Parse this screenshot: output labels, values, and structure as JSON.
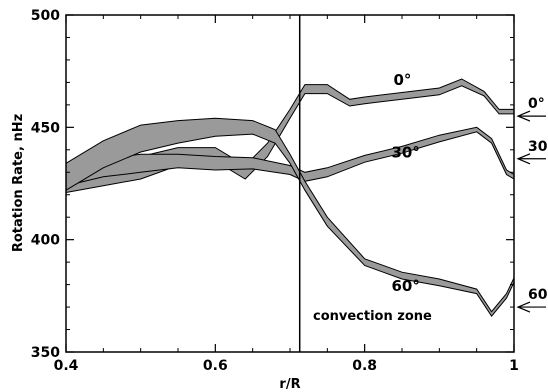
{
  "chart_data": {
    "type": "line",
    "title": "",
    "xlabel": "r/R",
    "ylabel": "Rotation Rate, nHz",
    "xlim": [
      0.4,
      1.0
    ],
    "ylim": [
      350,
      500
    ],
    "xticks": [
      0.4,
      0.6,
      0.8,
      1.0
    ],
    "xtick_labels": [
      "0.4",
      "0.6",
      "0.8",
      "1"
    ],
    "yticks": [
      350,
      400,
      450,
      500
    ],
    "ytick_labels": [
      "350",
      "400",
      "450",
      "500"
    ],
    "grid": false,
    "legend": "none",
    "band_color": "#9a9a9a",
    "series": [
      {
        "label": "0°",
        "x": [
          0.4,
          0.45,
          0.5,
          0.55,
          0.6,
          0.64,
          0.67,
          0.7,
          0.72,
          0.75,
          0.78,
          0.8,
          0.85,
          0.9,
          0.93,
          0.96,
          0.98,
          1.0
        ],
        "y": [
          425,
          429,
          432,
          437,
          438,
          430,
          440,
          456,
          467,
          467,
          461,
          462,
          464,
          466,
          470,
          465,
          457,
          457
        ],
        "halfwidth": [
          4,
          5,
          5,
          4,
          3,
          3,
          3,
          2,
          2,
          2,
          1.5,
          1.5,
          1.5,
          1.5,
          1.5,
          1,
          1,
          1
        ]
      },
      {
        "label": "30°",
        "x": [
          0.4,
          0.45,
          0.5,
          0.55,
          0.6,
          0.65,
          0.7,
          0.72,
          0.75,
          0.8,
          0.85,
          0.9,
          0.95,
          0.97,
          0.99,
          1.0
        ],
        "y": [
          428,
          432,
          434,
          435,
          434,
          434,
          431,
          428,
          430,
          436,
          440,
          445,
          449,
          444,
          430,
          428
        ],
        "halfwidth": [
          4,
          4,
          4,
          3,
          3,
          2.5,
          2,
          2,
          2,
          1.5,
          1.5,
          1.5,
          1,
          1,
          1,
          1
        ]
      },
      {
        "label": "60°",
        "x": [
          0.4,
          0.45,
          0.5,
          0.55,
          0.6,
          0.65,
          0.68,
          0.7,
          0.72,
          0.75,
          0.8,
          0.85,
          0.9,
          0.95,
          0.97,
          0.99,
          1.0
        ],
        "y": [
          428,
          438,
          445,
          448,
          450,
          450,
          446,
          436,
          424,
          408,
          390,
          384,
          381,
          377,
          367,
          375,
          382
        ],
        "halfwidth": [
          6,
          6,
          6,
          5,
          4,
          3,
          3,
          2,
          2,
          2,
          1.5,
          1.5,
          1.5,
          1,
          1,
          1,
          1
        ]
      }
    ],
    "surface_markers": [
      {
        "label": "0°",
        "y": 455
      },
      {
        "label": "30",
        "y": 436
      },
      {
        "label": "60",
        "y": 370
      }
    ],
    "annotations": {
      "boundary_x": 0.713,
      "boundary_text": "convection zone"
    }
  }
}
